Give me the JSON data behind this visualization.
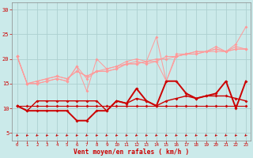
{
  "xlabel": "Vent moyen/en rafales ( km/h )",
  "bg_color": "#cbeaea",
  "grid_color": "#add0d0",
  "xlim": [
    -0.5,
    23.5
  ],
  "ylim": [
    3.5,
    31.5
  ],
  "yticks": [
    5,
    10,
    15,
    20,
    25,
    30
  ],
  "xticks": [
    0,
    1,
    2,
    3,
    4,
    5,
    6,
    7,
    8,
    9,
    10,
    11,
    12,
    13,
    14,
    15,
    16,
    17,
    18,
    19,
    20,
    21,
    22,
    23
  ],
  "pink_lines": [
    [
      20.5,
      15.0,
      15.0,
      15.5,
      16.0,
      15.5,
      18.5,
      13.5,
      20.0,
      18.0,
      18.5,
      19.5,
      20.0,
      19.5,
      24.5,
      15.5,
      21.0,
      21.0,
      21.5,
      21.5,
      22.5,
      21.5,
      23.0,
      26.5
    ],
    [
      20.5,
      15.0,
      15.0,
      15.5,
      16.0,
      15.5,
      18.5,
      16.0,
      17.5,
      17.5,
      18.0,
      19.0,
      19.5,
      19.0,
      19.5,
      15.5,
      20.5,
      21.0,
      21.5,
      21.5,
      22.0,
      21.5,
      22.5,
      22.0
    ],
    [
      20.5,
      15.0,
      15.5,
      16.0,
      16.5,
      16.0,
      17.5,
      16.5,
      17.5,
      17.5,
      18.0,
      19.0,
      19.0,
      19.5,
      19.5,
      20.5,
      20.5,
      21.0,
      21.0,
      21.5,
      22.0,
      21.5,
      22.0,
      22.0
    ],
    [
      20.5,
      15.0,
      15.5,
      16.0,
      16.5,
      16.0,
      17.5,
      16.5,
      17.5,
      18.0,
      18.5,
      19.0,
      19.0,
      19.5,
      20.0,
      20.0,
      20.5,
      21.0,
      21.0,
      21.5,
      21.5,
      21.5,
      22.0,
      22.0
    ]
  ],
  "dark_lines": [
    [
      10.5,
      9.5,
      9.5,
      9.5,
      9.5,
      9.5,
      7.5,
      7.5,
      9.5,
      9.5,
      11.5,
      11.0,
      14.0,
      11.5,
      10.5,
      15.5,
      15.5,
      13.0,
      12.0,
      12.5,
      13.0,
      15.5,
      10.0,
      15.5
    ],
    [
      10.5,
      9.5,
      11.5,
      11.5,
      11.5,
      11.5,
      11.5,
      11.5,
      11.5,
      9.5,
      11.5,
      11.0,
      12.0,
      11.5,
      10.5,
      11.5,
      12.0,
      12.5,
      12.0,
      12.5,
      12.5,
      12.5,
      12.0,
      11.5
    ],
    [
      10.5,
      10.5,
      10.5,
      10.5,
      10.5,
      10.5,
      10.5,
      10.5,
      10.5,
      10.5,
      10.5,
      10.5,
      10.5,
      10.5,
      10.5,
      10.5,
      10.5,
      10.5,
      10.5,
      10.5,
      10.5,
      10.5,
      10.5,
      10.5
    ]
  ],
  "pink_color": "#ff9999",
  "dark_color": "#cc0000",
  "marker_size": 2.0
}
